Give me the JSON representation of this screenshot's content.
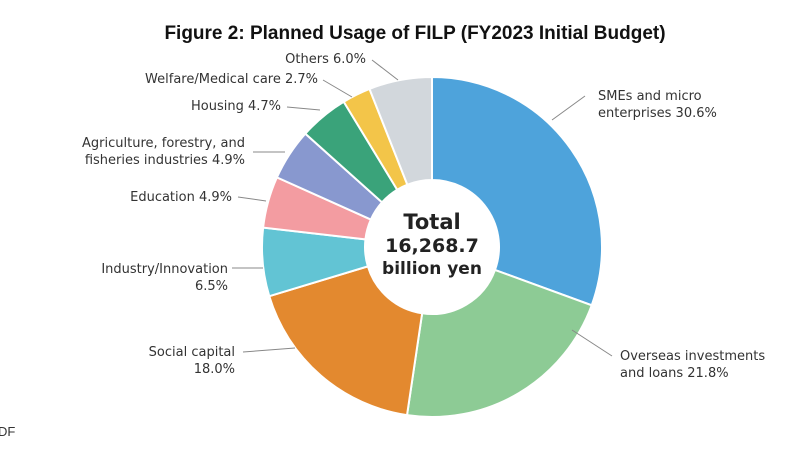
{
  "chart_data": {
    "type": "pie",
    "title": "Figure 2: Planned Usage of FILP (FY2023 Initial Budget)",
    "center_label": [
      "Total",
      "16,268.7",
      "billion yen"
    ],
    "slices": [
      {
        "label_lines": [
          "SMEs and micro",
          "enterprises 30.6%"
        ],
        "value": 30.6,
        "color": "#4ea3db"
      },
      {
        "label_lines": [
          "Overseas investments",
          "and loans 21.8%"
        ],
        "value": 21.8,
        "color": "#8dcb95"
      },
      {
        "label_lines": [
          "Social capital",
          "18.0%"
        ],
        "value": 18.0,
        "color": "#e3892f"
      },
      {
        "label_lines": [
          "Industry/Innovation",
          "6.5%"
        ],
        "value": 6.5,
        "color": "#62c4d4"
      },
      {
        "label_lines": [
          "Education 4.9%"
        ],
        "value": 4.9,
        "color": "#f39ca1"
      },
      {
        "label_lines": [
          "Agriculture, forestry, and",
          "fisheries industries 4.9%"
        ],
        "value": 4.9,
        "color": "#8898cf"
      },
      {
        "label_lines": [
          "Housing 4.7%"
        ],
        "value": 4.7,
        "color": "#3aa37a"
      },
      {
        "label_lines": [
          "Welfare/Medical care 2.7%"
        ],
        "value": 2.7,
        "color": "#f3c549"
      },
      {
        "label_lines": [
          "Others 6.0%"
        ],
        "value": 6.0,
        "color": "#d2d7dc"
      }
    ]
  },
  "footer_fragment": "DF"
}
